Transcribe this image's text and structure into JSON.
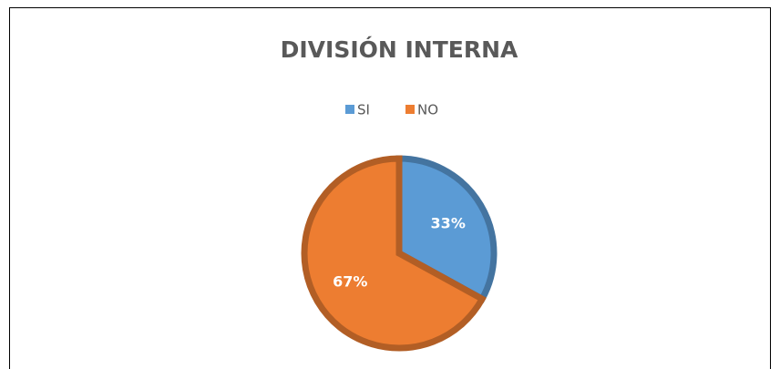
{
  "chart_data": {
    "type": "pie",
    "title": "DIVISIÓN INTERNA",
    "categories": [
      "SI",
      "NO"
    ],
    "values": [
      33,
      67
    ],
    "value_labels": [
      "33%",
      "67%"
    ],
    "colors": [
      "#5b9bd5",
      "#ed7d31"
    ],
    "legend": "top"
  }
}
